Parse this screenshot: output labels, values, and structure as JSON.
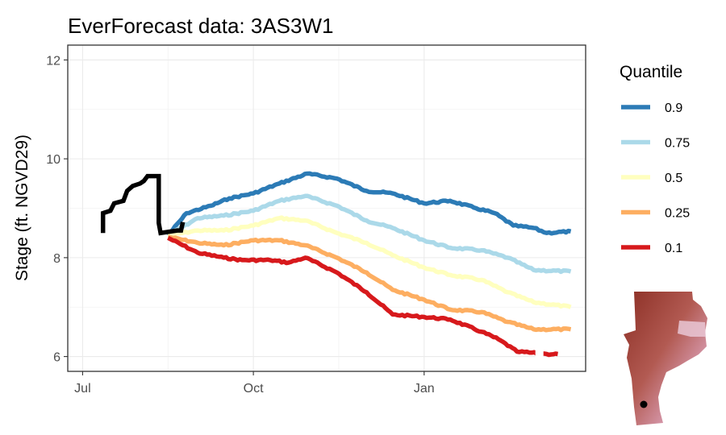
{
  "chart_data": {
    "type": "line",
    "title": "EverForecast data: 3AS3W1",
    "xlabel": "",
    "ylabel": "Stage (ft. NGVD29)",
    "x_ticks": [
      {
        "label": "Jul",
        "date": "2024-07-01"
      },
      {
        "label": "Oct",
        "date": "2024-10-01"
      },
      {
        "label": "Jan",
        "date": "2025-01-01"
      }
    ],
    "xlim": [
      "2024-06-23",
      "2025-03-29"
    ],
    "y_ticks": [
      6,
      8,
      10,
      12
    ],
    "ylim": [
      5.7,
      12.3
    ],
    "grid": true,
    "legend": {
      "title": "Quantile",
      "position": "right",
      "entries": [
        {
          "label": "0.9",
          "color": "#2C7BB6"
        },
        {
          "label": "0.75",
          "color": "#ABD9E9"
        },
        {
          "label": "0.5",
          "color": "#FFFFBF"
        },
        {
          "label": "0.25",
          "color": "#FDAE61"
        },
        {
          "label": "0.1",
          "color": "#D7191C"
        }
      ]
    },
    "observed": {
      "color": "#000000",
      "points": [
        [
          "2024-07-12",
          8.5
        ],
        [
          "2024-07-12",
          8.9
        ],
        [
          "2024-07-16",
          8.95
        ],
        [
          "2024-07-18",
          9.1
        ],
        [
          "2024-07-23",
          9.15
        ],
        [
          "2024-07-25",
          9.35
        ],
        [
          "2024-07-28",
          9.45
        ],
        [
          "2024-08-01",
          9.5
        ],
        [
          "2024-08-03",
          9.55
        ],
        [
          "2024-08-05",
          9.65
        ],
        [
          "2024-08-11",
          9.65
        ],
        [
          "2024-08-11",
          8.7
        ],
        [
          "2024-08-12",
          8.5
        ],
        [
          "2024-08-21",
          8.55
        ],
        [
          "2024-08-23",
          8.55
        ],
        [
          "2024-08-24",
          8.72
        ]
      ]
    },
    "series": [
      {
        "name": "0.9",
        "color": "#2C7BB6",
        "points": [
          [
            "2024-08-16",
            8.45
          ],
          [
            "2024-08-26",
            8.9
          ],
          [
            "2024-09-08",
            9.05
          ],
          [
            "2024-09-18",
            9.2
          ],
          [
            "2024-10-01",
            9.3
          ],
          [
            "2024-10-15",
            9.5
          ],
          [
            "2024-10-30",
            9.7
          ],
          [
            "2024-11-15",
            9.6
          ],
          [
            "2024-12-01",
            9.35
          ],
          [
            "2024-12-15",
            9.3
          ],
          [
            "2025-01-01",
            9.1
          ],
          [
            "2025-01-15",
            9.15
          ],
          [
            "2025-01-29",
            9.0
          ],
          [
            "2025-02-08",
            8.9
          ],
          [
            "2025-02-18",
            8.65
          ],
          [
            "2025-03-01",
            8.6
          ],
          [
            "2025-03-08",
            8.5
          ],
          [
            "2025-03-21",
            8.53
          ]
        ]
      },
      {
        "name": "0.75",
        "color": "#ABD9E9",
        "points": [
          [
            "2024-08-16",
            8.45
          ],
          [
            "2024-09-01",
            8.8
          ],
          [
            "2024-09-15",
            8.85
          ],
          [
            "2024-10-01",
            8.95
          ],
          [
            "2024-10-15",
            9.15
          ],
          [
            "2024-10-29",
            9.25
          ],
          [
            "2024-11-15",
            9.05
          ],
          [
            "2024-12-01",
            8.75
          ],
          [
            "2024-12-15",
            8.6
          ],
          [
            "2025-01-01",
            8.35
          ],
          [
            "2025-01-15",
            8.2
          ],
          [
            "2025-02-01",
            8.15
          ],
          [
            "2025-02-15",
            8.0
          ],
          [
            "2025-03-01",
            7.75
          ],
          [
            "2025-03-21",
            7.72
          ]
        ]
      },
      {
        "name": "0.5",
        "color": "#FFFFBF",
        "points": [
          [
            "2024-08-16",
            8.45
          ],
          [
            "2024-09-01",
            8.55
          ],
          [
            "2024-09-15",
            8.55
          ],
          [
            "2024-10-01",
            8.65
          ],
          [
            "2024-10-15",
            8.8
          ],
          [
            "2024-10-29",
            8.75
          ],
          [
            "2024-11-15",
            8.5
          ],
          [
            "2024-12-01",
            8.3
          ],
          [
            "2024-12-15",
            8.05
          ],
          [
            "2025-01-01",
            7.8
          ],
          [
            "2025-01-15",
            7.65
          ],
          [
            "2025-02-01",
            7.55
          ],
          [
            "2025-02-15",
            7.3
          ],
          [
            "2025-03-01",
            7.1
          ],
          [
            "2025-03-21",
            7.0
          ]
        ]
      },
      {
        "name": "0.25",
        "color": "#FDAE61",
        "points": [
          [
            "2024-08-16",
            8.42
          ],
          [
            "2024-09-01",
            8.3
          ],
          [
            "2024-09-15",
            8.25
          ],
          [
            "2024-10-01",
            8.35
          ],
          [
            "2024-10-15",
            8.35
          ],
          [
            "2024-10-29",
            8.25
          ],
          [
            "2024-11-15",
            8.0
          ],
          [
            "2024-12-01",
            7.7
          ],
          [
            "2024-12-15",
            7.35
          ],
          [
            "2025-01-01",
            7.15
          ],
          [
            "2025-01-15",
            6.95
          ],
          [
            "2025-02-01",
            6.9
          ],
          [
            "2025-02-15",
            6.7
          ],
          [
            "2025-03-01",
            6.55
          ],
          [
            "2025-03-21",
            6.55
          ]
        ]
      },
      {
        "name": "0.1",
        "color": "#D7191C",
        "points": [
          [
            "2024-08-16",
            8.4
          ],
          [
            "2024-09-01",
            8.1
          ],
          [
            "2024-09-15",
            8.0
          ],
          [
            "2024-09-25",
            7.95
          ],
          [
            "2024-10-10",
            7.95
          ],
          [
            "2024-10-20",
            7.9
          ],
          [
            "2024-10-29",
            8.0
          ],
          [
            "2024-11-15",
            7.7
          ],
          [
            "2024-12-01",
            7.3
          ],
          [
            "2024-12-15",
            6.85
          ],
          [
            "2025-01-01",
            6.8
          ],
          [
            "2025-01-15",
            6.75
          ],
          [
            "2025-02-01",
            6.5
          ],
          [
            "2025-02-10",
            6.35
          ],
          [
            "2025-02-20",
            6.1
          ],
          [
            "2025-03-08",
            6.05
          ],
          [
            "2025-03-14",
            6.05
          ]
        ]
      }
    ],
    "inset_map": {
      "marker_color": "#000000",
      "colors": [
        "#8B2E24",
        "#C46A66",
        "#E8B6CC"
      ]
    }
  }
}
